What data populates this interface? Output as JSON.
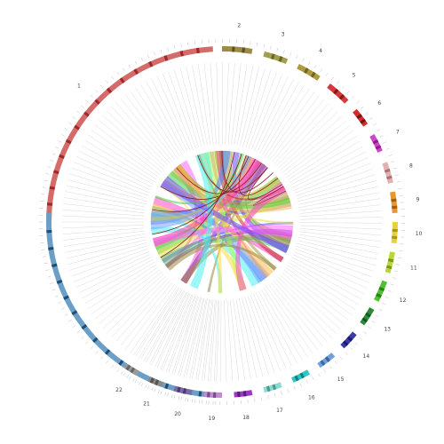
{
  "diagram": {
    "type": "chord",
    "colors": {
      "background": "#ffffff",
      "leader_line": "#c8c8c8",
      "band_dark": "#8b1c1c"
    },
    "segments": [
      {
        "id": "1",
        "label": "1",
        "color": "#d46a6a",
        "dark": "#9e2a2a",
        "start": -90,
        "end": -3
      },
      {
        "id": "1b",
        "label": "",
        "color": "#6b9fc7",
        "dark": "#1f4e73",
        "start": -87,
        "end": -178
      },
      {
        "id": "2",
        "label": "2",
        "color": "#9c8a46",
        "dark": "#5f5225",
        "start": 0,
        "end": 10
      },
      {
        "id": "3",
        "label": "3",
        "color": "#a4a04a",
        "dark": "#6a6628",
        "start": 14,
        "end": 22
      },
      {
        "id": "4",
        "label": "4",
        "color": "#b09a40",
        "dark": "#75641f",
        "start": 26,
        "end": 34
      },
      {
        "id": "5",
        "label": "5",
        "color": "#d43b3b",
        "dark": "#8b1515",
        "start": 38,
        "end": 46
      },
      {
        "id": "6",
        "label": "6",
        "color": "#d22e2e",
        "dark": "#7a1010",
        "start": 50,
        "end": 56
      },
      {
        "id": "7",
        "label": "7",
        "color": "#d045c8",
        "dark": "#8a2084",
        "start": 60,
        "end": 66
      },
      {
        "id": "8",
        "label": "8",
        "color": "#e3b1b1",
        "dark": "#b07070",
        "start": 70,
        "end": 77
      },
      {
        "id": "9",
        "label": "9",
        "color": "#e8962e",
        "dark": "#a05e10",
        "start": 80,
        "end": 87
      },
      {
        "id": "10",
        "label": "10",
        "color": "#e6d23a",
        "dark": "#a99520",
        "start": 90,
        "end": 97
      },
      {
        "id": "11",
        "label": "11",
        "color": "#b8d83a",
        "dark": "#7a9a18",
        "start": 100,
        "end": 107
      },
      {
        "id": "12",
        "label": "12",
        "color": "#4fc232",
        "dark": "#2a8018",
        "start": 110,
        "end": 117
      },
      {
        "id": "13",
        "label": "13",
        "color": "#2d8a3a",
        "dark": "#125a1e",
        "start": 120,
        "end": 126
      },
      {
        "id": "14",
        "label": "14",
        "color": "#3a3aa8",
        "dark": "#1a1a70",
        "start": 130,
        "end": 136
      },
      {
        "id": "15",
        "label": "15",
        "color": "#6fa0e0",
        "dark": "#3a66a8",
        "start": 140,
        "end": 146
      },
      {
        "id": "16",
        "label": "16",
        "color": "#2fc6c6",
        "dark": "#158080",
        "start": 150,
        "end": 156
      },
      {
        "id": "17",
        "label": "17",
        "color": "#8adbd2",
        "dark": "#4a9a92",
        "start": 160,
        "end": 166
      },
      {
        "id": "18",
        "label": "18",
        "color": "#9a3ac2",
        "dark": "#5a1a80",
        "start": 170,
        "end": 176
      },
      {
        "id": "19",
        "label": "19",
        "color": "#c28ad2",
        "dark": "#7a4a8a",
        "start": 180,
        "end": 186
      },
      {
        "id": "20",
        "label": "20",
        "color": "#7a6aa8",
        "dark": "#4a3a70",
        "start": 190,
        "end": 196
      },
      {
        "id": "21",
        "label": "21",
        "color": "#8a8a8a",
        "dark": "#555555",
        "start": 200,
        "end": 205
      },
      {
        "id": "22",
        "label": "22",
        "color": "#9a9a9a",
        "dark": "#666666",
        "start": 209,
        "end": 214
      }
    ],
    "chord_colors": [
      "#ffd84a",
      "#d4c84a",
      "#ff4ac8",
      "#ff66ff",
      "#a0a04a",
      "#9a8a40",
      "#7aa0ff",
      "#6a4aff",
      "#4af0f0",
      "#4ad04a",
      "#b0ff4a",
      "#ff3aa0",
      "#c02a2a",
      "#9a2ac8",
      "#ffb84a",
      "#6ac06a",
      "#4a8aff",
      "#e0e04a"
    ]
  }
}
